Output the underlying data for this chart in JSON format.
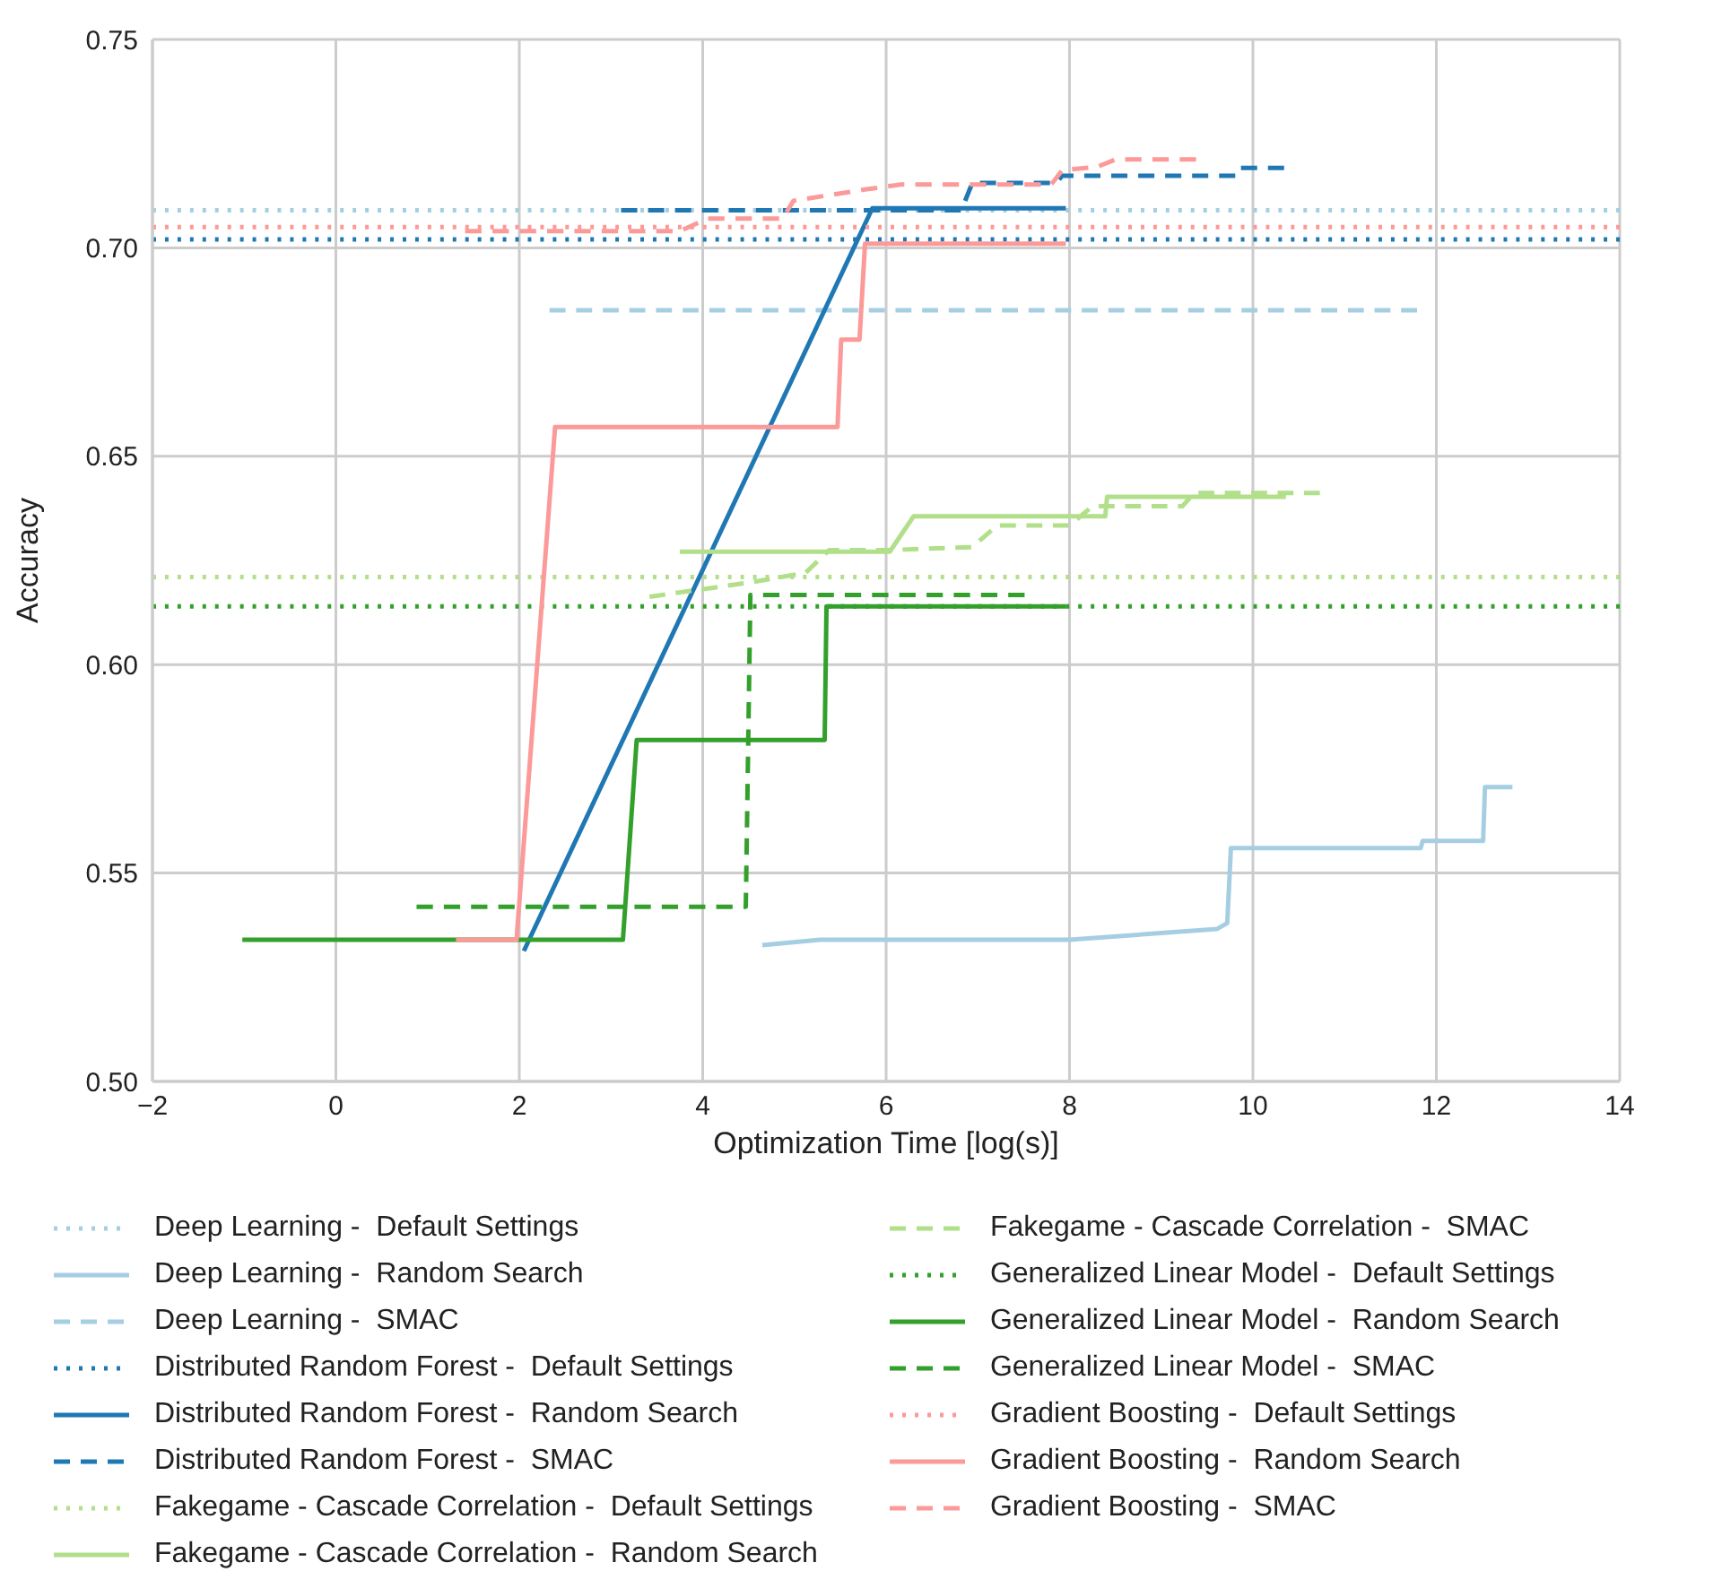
{
  "chart_data": {
    "type": "line",
    "xlabel": "Optimization Time [log(s)]",
    "ylabel": "Accuracy",
    "xlim": [
      -2,
      14
    ],
    "ylim": [
      0.5,
      0.75
    ],
    "xticks": [
      {
        "value": -2,
        "label": "−2"
      },
      0,
      2,
      4,
      6,
      8,
      10,
      12,
      14
    ],
    "yticks": [
      {
        "value": 0.5,
        "label": "0.50"
      },
      {
        "value": 0.55,
        "label": "0.55"
      },
      {
        "value": 0.6,
        "label": "0.60"
      },
      {
        "value": 0.65,
        "label": "0.65"
      },
      {
        "value": 0.7,
        "label": "0.70"
      },
      {
        "value": 0.75,
        "label": "0.75"
      }
    ],
    "grid": true,
    "legend": "bottom",
    "series": [
      {
        "name": "Deep Learning -  Default Settings",
        "color": "#a6cee3",
        "line_style": "dotted",
        "x": [
          -2,
          14
        ],
        "values": [
          0.709,
          0.709
        ]
      },
      {
        "name": "Deep Learning -  Random Search",
        "color": "#a6cee3",
        "line_style": "solid",
        "x": [
          4.65,
          5.28,
          8.0,
          9.61,
          9.72,
          9.76,
          11.83,
          11.85,
          12.51,
          12.53,
          12.83
        ],
        "values": [
          0.5327,
          0.534,
          0.534,
          0.5366,
          0.538,
          0.556,
          0.556,
          0.5577,
          0.5577,
          0.5706,
          0.5706
        ]
      },
      {
        "name": "Deep Learning -  SMAC",
        "color": "#a6cee3",
        "line_style": "dashed",
        "x": [
          2.33,
          11.79
        ],
        "values": [
          0.685,
          0.685
        ]
      },
      {
        "name": "Distributed Random Forest -  Default Settings",
        "color": "#1f78b4",
        "line_style": "dotted",
        "x": [
          -2,
          14
        ],
        "values": [
          0.702,
          0.702
        ]
      },
      {
        "name": "Distributed Random Forest -  Random Search",
        "color": "#1f78b4",
        "line_style": "solid",
        "x": [
          2.05,
          5.85,
          7.96
        ],
        "values": [
          0.5313,
          0.7095,
          0.7095
        ]
      },
      {
        "name": "Distributed Random Forest -  SMAC",
        "color": "#1f78b4",
        "line_style": "dashed",
        "x": [
          3.11,
          6.82,
          6.94,
          7.86,
          7.92,
          9.81,
          9.85,
          10.34
        ],
        "values": [
          0.709,
          0.709,
          0.7156,
          0.7156,
          0.7173,
          0.7173,
          0.7192,
          0.7192
        ]
      },
      {
        "name": "Fakegame - Cascade Correlation -  Default Settings",
        "color": "#b2df8a",
        "line_style": "dotted",
        "x": [
          -2,
          14
        ],
        "values": [
          0.621,
          0.621
        ]
      },
      {
        "name": "Fakegame - Cascade Correlation -  Random Search",
        "color": "#b2df8a",
        "line_style": "solid",
        "x": [
          3.75,
          6.04,
          6.3,
          8.39,
          8.41,
          10.36
        ],
        "values": [
          0.6271,
          0.6271,
          0.6356,
          0.6356,
          0.6403,
          0.6403
        ]
      },
      {
        "name": "Fakegame - Cascade Correlation -  SMAC",
        "color": "#b2df8a",
        "line_style": "dashed",
        "x": [
          3.42,
          4.48,
          5.12,
          5.38,
          6.04,
          6.94,
          7.21,
          8.0,
          8.25,
          9.23,
          9.36,
          10.73
        ],
        "values": [
          0.6163,
          0.6196,
          0.622,
          0.6275,
          0.6275,
          0.6282,
          0.6334,
          0.6334,
          0.638,
          0.638,
          0.6412,
          0.6412
        ]
      },
      {
        "name": "Generalized Linear Model -  Default Settings",
        "color": "#33a02c",
        "line_style": "dotted",
        "x": [
          -2,
          14
        ],
        "values": [
          0.614,
          0.614
        ]
      },
      {
        "name": "Generalized Linear Model -  Random Search",
        "color": "#33a02c",
        "line_style": "solid",
        "x": [
          -1.02,
          3.13,
          3.28,
          5.33,
          5.35,
          7.96
        ],
        "values": [
          0.534,
          0.534,
          0.5819,
          0.5819,
          0.614,
          0.614
        ]
      },
      {
        "name": "Generalized Linear Model -  SMAC",
        "color": "#33a02c",
        "line_style": "dashed",
        "x": [
          0.88,
          4.47,
          4.52,
          7.51
        ],
        "values": [
          0.5419,
          0.5419,
          0.6167,
          0.6167
        ]
      },
      {
        "name": "Gradient Boosting -  Default Settings",
        "color": "#fb9a99",
        "line_style": "dotted",
        "x": [
          -2,
          14
        ],
        "values": [
          0.705,
          0.705
        ]
      },
      {
        "name": "Gradient Boosting -  Random Search",
        "color": "#fb9a99",
        "line_style": "solid",
        "x": [
          1.31,
          1.97,
          2.39,
          5.47,
          5.51,
          5.71,
          5.77,
          7.96
        ],
        "values": [
          0.534,
          0.534,
          0.657,
          0.657,
          0.678,
          0.678,
          0.701,
          0.701
        ]
      },
      {
        "name": "Gradient Boosting -  SMAC",
        "color": "#fb9a99",
        "line_style": "dashed",
        "x": [
          1.41,
          3.75,
          4.05,
          4.87,
          4.99,
          5.77,
          6.16,
          7.8,
          7.92,
          8.31,
          8.5,
          9.38
        ],
        "values": [
          0.704,
          0.704,
          0.707,
          0.707,
          0.7113,
          0.714,
          0.7152,
          0.7152,
          0.7186,
          0.7195,
          0.7212,
          0.7212
        ]
      }
    ]
  }
}
